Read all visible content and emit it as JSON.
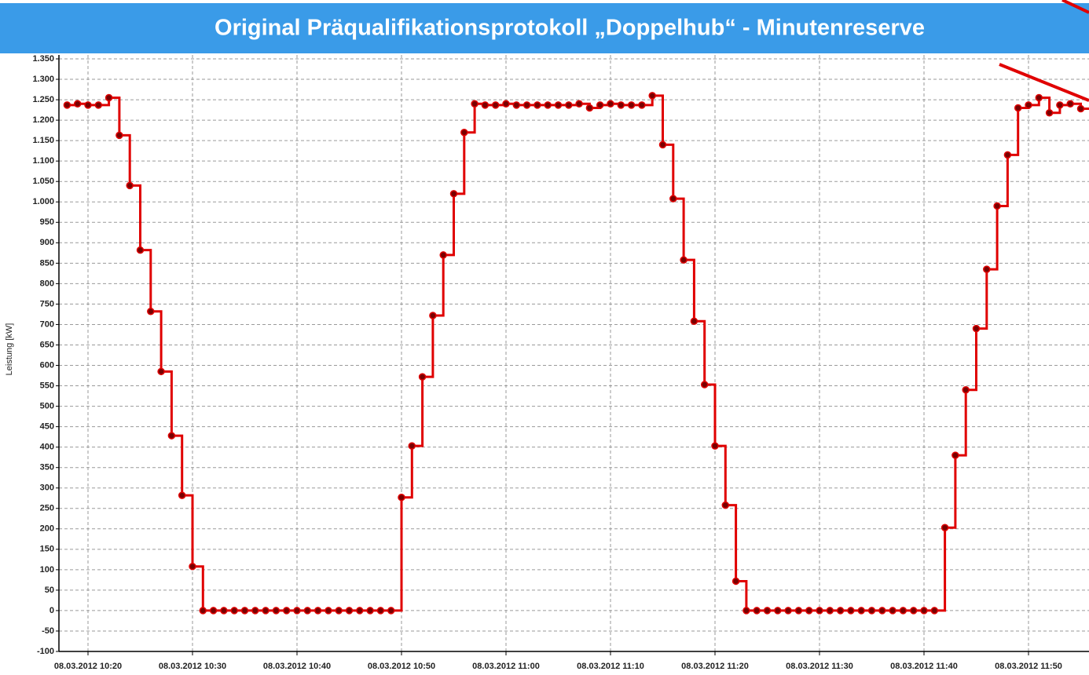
{
  "chart_data": {
    "type": "step",
    "title": "Original Präqualifikationsprotokoll „Doppelhub“ - Minutenreserve",
    "y_label": "Leistung [kW]",
    "x": [
      "08.03.2012 10:18",
      "08.03.2012 10:19",
      "08.03.2012 10:20",
      "08.03.2012 10:21",
      "08.03.2012 10:22",
      "08.03.2012 10:23",
      "08.03.2012 10:24",
      "08.03.2012 10:25",
      "08.03.2012 10:26",
      "08.03.2012 10:27",
      "08.03.2012 10:28",
      "08.03.2012 10:29",
      "08.03.2012 10:30",
      "08.03.2012 10:31",
      "08.03.2012 10:32",
      "08.03.2012 10:33",
      "08.03.2012 10:34",
      "08.03.2012 10:35",
      "08.03.2012 10:36",
      "08.03.2012 10:37",
      "08.03.2012 10:38",
      "08.03.2012 10:39",
      "08.03.2012 10:40",
      "08.03.2012 10:41",
      "08.03.2012 10:42",
      "08.03.2012 10:43",
      "08.03.2012 10:44",
      "08.03.2012 10:45",
      "08.03.2012 10:46",
      "08.03.2012 10:47",
      "08.03.2012 10:48",
      "08.03.2012 10:49",
      "08.03.2012 10:50",
      "08.03.2012 10:51",
      "08.03.2012 10:52",
      "08.03.2012 10:53",
      "08.03.2012 10:54",
      "08.03.2012 10:55",
      "08.03.2012 10:56",
      "08.03.2012 10:57",
      "08.03.2012 10:58",
      "08.03.2012 10:59",
      "08.03.2012 11:00",
      "08.03.2012 11:01",
      "08.03.2012 11:02",
      "08.03.2012 11:03",
      "08.03.2012 11:04",
      "08.03.2012 11:05",
      "08.03.2012 11:06",
      "08.03.2012 11:07",
      "08.03.2012 11:08",
      "08.03.2012 11:09",
      "08.03.2012 11:10",
      "08.03.2012 11:11",
      "08.03.2012 11:12",
      "08.03.2012 11:13",
      "08.03.2012 11:14",
      "08.03.2012 11:15",
      "08.03.2012 11:16",
      "08.03.2012 11:17",
      "08.03.2012 11:18",
      "08.03.2012 11:19",
      "08.03.2012 11:20",
      "08.03.2012 11:21",
      "08.03.2012 11:22",
      "08.03.2012 11:23",
      "08.03.2012 11:24",
      "08.03.2012 11:25",
      "08.03.2012 11:26",
      "08.03.2012 11:27",
      "08.03.2012 11:28",
      "08.03.2012 11:29",
      "08.03.2012 11:30",
      "08.03.2012 11:31",
      "08.03.2012 11:32",
      "08.03.2012 11:33",
      "08.03.2012 11:34",
      "08.03.2012 11:35",
      "08.03.2012 11:36",
      "08.03.2012 11:37",
      "08.03.2012 11:38",
      "08.03.2012 11:39",
      "08.03.2012 11:40",
      "08.03.2012 11:41",
      "08.03.2012 11:42",
      "08.03.2012 11:43",
      "08.03.2012 11:44",
      "08.03.2012 11:45",
      "08.03.2012 11:46",
      "08.03.2012 11:47",
      "08.03.2012 11:48",
      "08.03.2012 11:49",
      "08.03.2012 11:50",
      "08.03.2012 11:51",
      "08.03.2012 11:52",
      "08.03.2012 11:53",
      "08.03.2012 11:54",
      "08.03.2012 11:55"
    ],
    "series": [
      {
        "color": "#e00000",
        "values": [
          1237,
          1240,
          1237,
          1237,
          1255,
          1163,
          1040,
          882,
          732,
          585,
          428,
          282,
          108,
          0,
          0,
          0,
          0,
          0,
          0,
          0,
          0,
          0,
          0,
          0,
          0,
          0,
          0,
          0,
          0,
          0,
          0,
          0,
          277,
          403,
          572,
          722,
          870,
          1020,
          1170,
          1240,
          1237,
          1237,
          1240,
          1237,
          1237,
          1237,
          1237,
          1237,
          1237,
          1240,
          1230,
          1237,
          1240,
          1237,
          1237,
          1237,
          1260,
          1140,
          1008,
          858,
          708,
          553,
          403,
          258,
          72,
          0,
          0,
          0,
          0,
          0,
          0,
          0,
          0,
          0,
          0,
          0,
          0,
          0,
          0,
          0,
          0,
          0,
          0,
          0,
          203,
          380,
          540,
          690,
          835,
          990,
          1115,
          1230,
          1237,
          1255,
          1218,
          1237,
          1240,
          1228
        ]
      }
    ],
    "xlim": [
      "08.03.2012 10:17",
      "08.03.2012 11:56"
    ],
    "xticks": [
      "08.03.2012 10:20",
      "08.03.2012 10:30",
      "08.03.2012 10:40",
      "08.03.2012 10:50",
      "08.03.2012 11:00",
      "08.03.2012 11:10",
      "08.03.2012 11:20",
      "08.03.2012 11:30",
      "08.03.2012 11:40",
      "08.03.2012 11:50"
    ],
    "ylim": [
      -100,
      1350
    ],
    "yticks": [
      -100,
      -50,
      0,
      50,
      100,
      150,
      200,
      250,
      300,
      350,
      400,
      450,
      500,
      550,
      600,
      650,
      700,
      750,
      800,
      850,
      900,
      950,
      {
        "value": 1000,
        "label": "1.000"
      },
      {
        "value": 1050,
        "label": "1.050"
      },
      {
        "value": 1100,
        "label": "1.100"
      },
      {
        "value": 1150,
        "label": "1.150"
      },
      {
        "value": 1200,
        "label": "1.200"
      },
      {
        "value": 1250,
        "label": "1.250"
      },
      {
        "value": 1300,
        "label": "1.300"
      },
      {
        "value": 1350,
        "label": "1.350"
      }
    ],
    "grid": true
  }
}
